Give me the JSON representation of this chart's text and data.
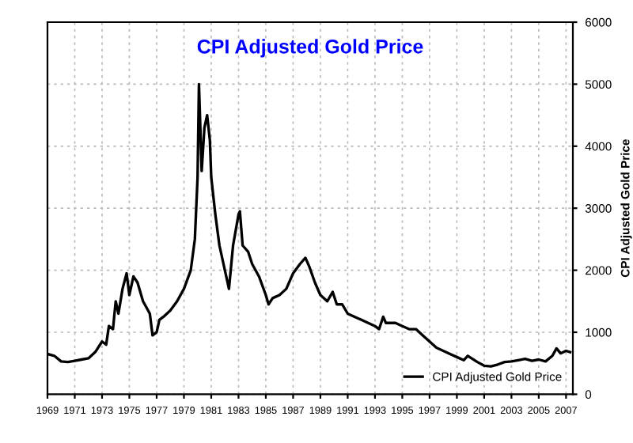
{
  "chart_data": {
    "type": "line",
    "title": "CPI Adjusted Gold Price",
    "ylabel": "CPI Adjusted Gold Price",
    "xlim": [
      1969,
      2007.5
    ],
    "xticks": [
      1969,
      1971,
      1973,
      1975,
      1977,
      1979,
      1981,
      1983,
      1985,
      1987,
      1989,
      1991,
      1993,
      1995,
      1997,
      1999,
      2001,
      2003,
      2005,
      2007
    ],
    "ylim": [
      0,
      6000
    ],
    "yticks": [
      0,
      1000,
      2000,
      3000,
      4000,
      5000,
      6000
    ],
    "grid": true,
    "legend": "bottom right",
    "series": [
      {
        "name": "CPI Adjusted Gold Price",
        "color": "#000000",
        "x": [
          1969,
          1969.5,
          1970,
          1970.5,
          1971,
          1971.5,
          1972,
          1972.5,
          1973,
          1973.3,
          1973.5,
          1973.8,
          1974,
          1974.2,
          1974.5,
          1974.8,
          1975,
          1975.3,
          1975.6,
          1976,
          1976.5,
          1976.7,
          1977,
          1977.2,
          1977.5,
          1978,
          1978.5,
          1979,
          1979.5,
          1979.8,
          1980.0,
          1980.1,
          1980.3,
          1980.5,
          1980.7,
          1980.9,
          1981,
          1981.3,
          1981.6,
          1982,
          1982.3,
          1982.6,
          1983,
          1983.1,
          1983.3,
          1983.7,
          1984,
          1984.5,
          1985,
          1985.2,
          1985.5,
          1986,
          1986.5,
          1987,
          1987.5,
          1987.9,
          1988.2,
          1988.6,
          1989,
          1989.5,
          1989.9,
          1990.2,
          1990.6,
          1991,
          1991.5,
          1992,
          1992.5,
          1993,
          1993.3,
          1993.6,
          1993.8,
          1994.5,
          1995,
          1995.5,
          1996,
          1996.5,
          1997,
          1997.5,
          1998,
          1998.5,
          1999,
          1999.5,
          1999.8,
          2000.5,
          2001,
          2001.5,
          2002,
          2002.5,
          2003,
          2003.5,
          2004,
          2004.5,
          2005,
          2005.5,
          2006,
          2006.3,
          2006.6,
          2007,
          2007.3
        ],
        "values": [
          650,
          620,
          530,
          520,
          540,
          560,
          580,
          680,
          850,
          800,
          1100,
          1050,
          1500,
          1300,
          1700,
          1950,
          1600,
          1900,
          1800,
          1500,
          1300,
          950,
          1000,
          1200,
          1250,
          1350,
          1500,
          1700,
          2000,
          2500,
          3500,
          5000,
          3600,
          4300,
          4500,
          4100,
          3500,
          2900,
          2400,
          2000,
          1700,
          2400,
          2900,
          2950,
          2400,
          2300,
          2100,
          1900,
          1600,
          1450,
          1550,
          1600,
          1700,
          1950,
          2100,
          2200,
          2050,
          1800,
          1600,
          1500,
          1650,
          1450,
          1450,
          1300,
          1250,
          1200,
          1150,
          1100,
          1050,
          1250,
          1150,
          1150,
          1100,
          1050,
          1050,
          950,
          850,
          750,
          700,
          650,
          600,
          550,
          620,
          520,
          460,
          450,
          480,
          520,
          530,
          550,
          570,
          540,
          560,
          530,
          620,
          740,
          660,
          700,
          680
        ]
      }
    ]
  }
}
